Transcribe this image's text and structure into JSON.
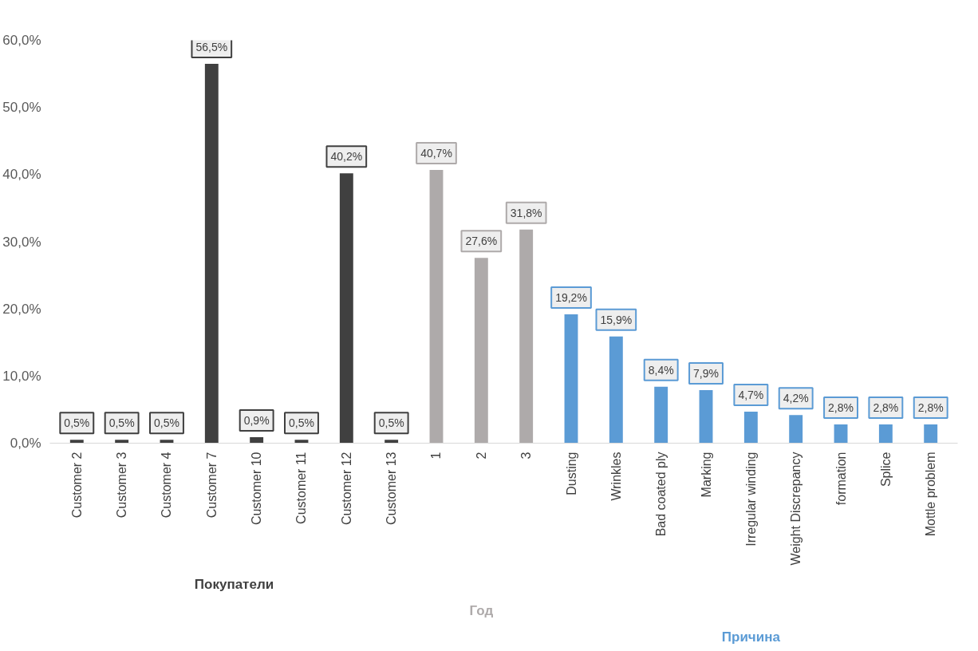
{
  "chart_data": {
    "type": "bar",
    "categories": [
      "Customer 2",
      "Customer 3",
      "Customer 4",
      "Customer 7",
      "Customer 10",
      "Customer 11",
      "Customer 12",
      "Customer 13",
      "1",
      "2",
      "3",
      "Dusting",
      "Wrinkles",
      "Bad coated ply",
      "Marking",
      "Irregular winding",
      "Weight Discrepancy",
      "formation",
      "Splice",
      "Mottle problem"
    ],
    "series": [
      {
        "name": "Покупатели",
        "color": "#404040",
        "values": [
          0.5,
          0.5,
          0.5,
          56.5,
          0.9,
          0.5,
          40.2,
          0.5,
          null,
          null,
          null,
          null,
          null,
          null,
          null,
          null,
          null,
          null,
          null,
          null
        ],
        "value_labels": [
          "0,5%",
          "0,5%",
          "0,5%",
          "56,5%",
          "0,9%",
          "0,5%",
          "40,2%",
          "0,5%",
          null,
          null,
          null,
          null,
          null,
          null,
          null,
          null,
          null,
          null,
          null,
          null
        ]
      },
      {
        "name": "Год",
        "color": "#aeaaaa",
        "values": [
          null,
          null,
          null,
          null,
          null,
          null,
          null,
          null,
          40.7,
          27.6,
          31.8,
          null,
          null,
          null,
          null,
          null,
          null,
          null,
          null,
          null
        ],
        "value_labels": [
          null,
          null,
          null,
          null,
          null,
          null,
          null,
          null,
          "40,7%",
          "27,6%",
          "31,8%",
          null,
          null,
          null,
          null,
          null,
          null,
          null,
          null,
          null
        ]
      },
      {
        "name": "Причина",
        "color": "#5b9bd5",
        "values": [
          null,
          null,
          null,
          null,
          null,
          null,
          null,
          null,
          null,
          null,
          null,
          19.2,
          15.9,
          8.4,
          7.9,
          4.7,
          4.2,
          2.8,
          2.8,
          2.8
        ],
        "value_labels": [
          null,
          null,
          null,
          null,
          null,
          null,
          null,
          null,
          null,
          null,
          null,
          "19,2%",
          "15,9%",
          "8,4%",
          "7,9%",
          "4,7%",
          "4,2%",
          "2,8%",
          "2,8%",
          "2,8%"
        ]
      }
    ],
    "ylim": [
      0,
      60
    ],
    "yticks": [
      {
        "value": 0,
        "label": "0,0%"
      },
      {
        "value": 10,
        "label": "10,0%"
      },
      {
        "value": 20,
        "label": "20,0%"
      },
      {
        "value": 30,
        "label": "30,0%"
      },
      {
        "value": 40,
        "label": "40,0%"
      },
      {
        "value": 50,
        "label": "50,0%"
      },
      {
        "value": 60,
        "label": "60,0%"
      }
    ],
    "grid": false
  }
}
